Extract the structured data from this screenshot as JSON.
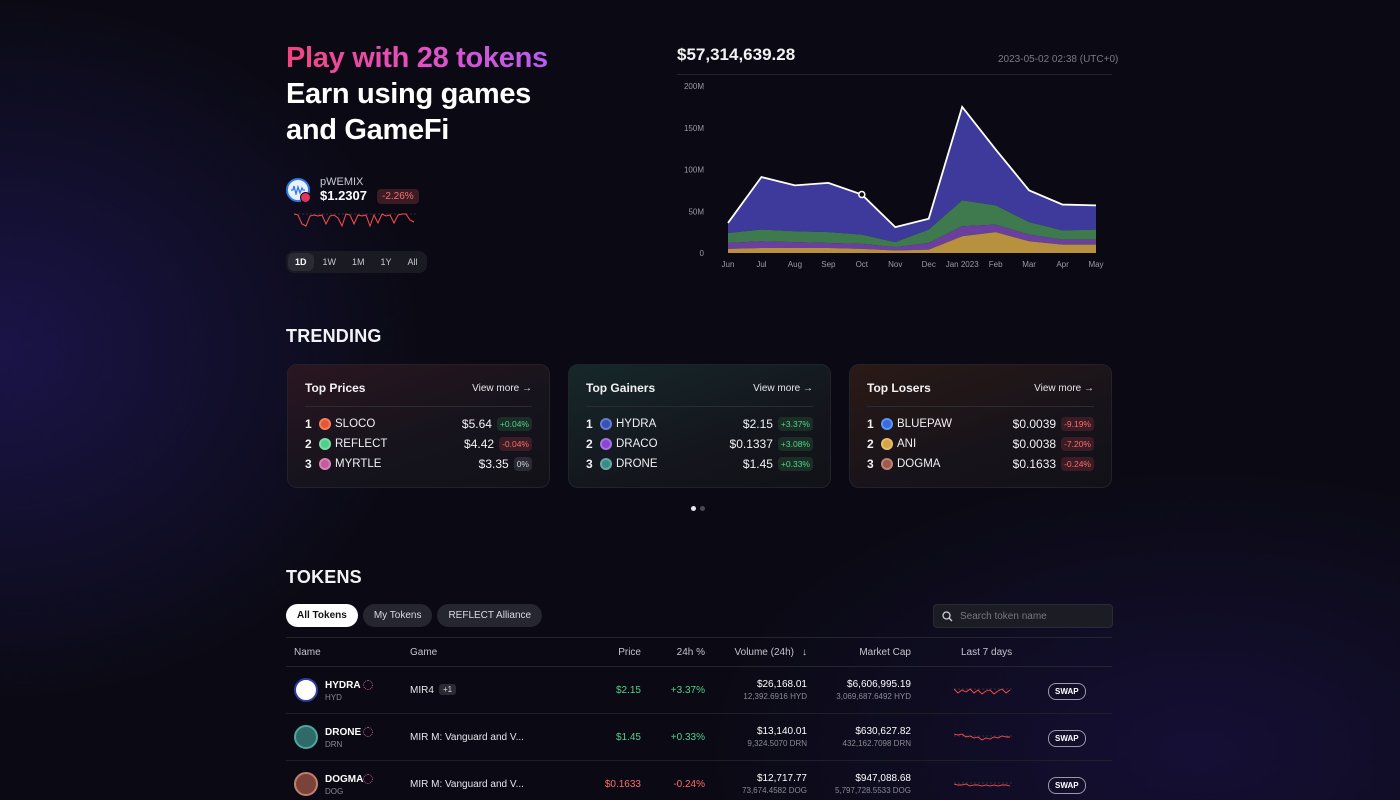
{
  "hero": {
    "title_highlight": "Play with 28 tokens",
    "title_line2": "Earn using games",
    "title_line3": "and GameFi",
    "token_name": "pWEMIX",
    "token_price": "$1.2307",
    "token_change": "-2.26%",
    "ranges": [
      "1D",
      "1W",
      "1M",
      "1Y",
      "All"
    ],
    "active_range": "1D"
  },
  "chart": {
    "total": "$57,314,639.28",
    "timestamp": "2023-05-02 02:38 (UTC+0)"
  },
  "chart_data": {
    "type": "area",
    "stacked": true,
    "x": [
      "Jun",
      "Jul",
      "Aug",
      "Sep",
      "Oct",
      "Nov",
      "Dec",
      "Jan 2023",
      "Feb",
      "Mar",
      "Apr",
      "May"
    ],
    "y_ticks": [
      "0",
      "50M",
      "100M",
      "150M",
      "200M"
    ],
    "ylim": [
      0,
      200
    ],
    "series": [
      {
        "color": "#b7913e",
        "values": [
          5,
          6,
          6,
          6,
          5,
          3,
          4,
          20,
          25,
          14,
          10,
          10
        ]
      },
      {
        "color": "#6a3f9e",
        "values": [
          7,
          8,
          7,
          6,
          6,
          4,
          8,
          12,
          9,
          8,
          6,
          6
        ]
      },
      {
        "color": "#3f7a4f",
        "values": [
          12,
          14,
          13,
          13,
          11,
          6,
          16,
          31,
          23,
          15,
          11,
          12
        ]
      },
      {
        "color": "#3d3a9c",
        "values": [
          12,
          63,
          55,
          59,
          48,
          18,
          13,
          112,
          67,
          38,
          31,
          29
        ]
      }
    ],
    "total_line_color": "#ffffff",
    "grid": false
  },
  "trending": {
    "title": "TRENDING",
    "view_more": "View more",
    "cards": [
      {
        "title": "Top Prices",
        "rows": [
          {
            "rank": "1",
            "name": "SLOCO",
            "price": "$5.64",
            "change": "+0.04%",
            "dir": "up",
            "color": "#e8552f"
          },
          {
            "rank": "2",
            "name": "REFLECT",
            "price": "$4.42",
            "change": "-0.04%",
            "dir": "down",
            "color": "#4fd08a"
          },
          {
            "rank": "3",
            "name": "MYRTLE",
            "price": "$3.35",
            "change": "0%",
            "dir": "flat",
            "color": "#c65aa0"
          }
        ]
      },
      {
        "title": "Top Gainers",
        "rows": [
          {
            "rank": "1",
            "name": "HYDRA",
            "price": "$2.15",
            "change": "+3.37%",
            "dir": "up",
            "color": "#3550b8"
          },
          {
            "rank": "2",
            "name": "DRACO",
            "price": "$0.1337",
            "change": "+3.08%",
            "dir": "up",
            "color": "#8a45d6"
          },
          {
            "rank": "3",
            "name": "DRONE",
            "price": "$1.45",
            "change": "+0.33%",
            "dir": "up",
            "color": "#3a8a86"
          }
        ]
      },
      {
        "title": "Top Losers",
        "rows": [
          {
            "rank": "1",
            "name": "BLUEPAW",
            "price": "$0.0039",
            "change": "-9.19%",
            "dir": "down",
            "color": "#2f6fe0"
          },
          {
            "rank": "2",
            "name": "ANI",
            "price": "$0.0038",
            "change": "-7.20%",
            "dir": "down",
            "color": "#d8a640"
          },
          {
            "rank": "3",
            "name": "DOGMA",
            "price": "$0.1633",
            "change": "-0.24%",
            "dir": "down",
            "color": "#a05a4a"
          }
        ]
      }
    ]
  },
  "tokens": {
    "title": "TOKENS",
    "filters": [
      "All Tokens",
      "My Tokens",
      "REFLECT Alliance"
    ],
    "active_filter": "All Tokens",
    "search_placeholder": "Search token name",
    "columns": {
      "name": "Name",
      "game": "Game",
      "price": "Price",
      "change": "24h %",
      "volume": "Volume (24h)",
      "cap": "Market Cap",
      "spark": "Last 7 days"
    },
    "swap_label": "SWAP",
    "rows": [
      {
        "name": "HYDRA",
        "symbol": "HYD",
        "game": "MIR4",
        "more": "+1",
        "price": "$2.15",
        "change": "+3.37%",
        "dir": "up",
        "volume": "$26,168.01",
        "volume_token": "12,392.6916 HYD",
        "cap": "$6,606,995.19",
        "cap_token": "3,069,687.6492 HYD",
        "logo_color": "#ffffff",
        "logo_ring": "#2c3c9c"
      },
      {
        "name": "DRONE",
        "symbol": "DRN",
        "game": "MIR M: Vanguard and V...",
        "more": "",
        "price": "$1.45",
        "change": "+0.33%",
        "dir": "up",
        "volume": "$13,140.01",
        "volume_token": "9,324.5070 DRN",
        "cap": "$630,627.82",
        "cap_token": "432,162.7098 DRN",
        "logo_color": "#2f6a68",
        "logo_ring": "#4fa6a0"
      },
      {
        "name": "DOGMA",
        "symbol": "DOG",
        "game": "MIR M: Vanguard and V...",
        "more": "",
        "price": "$0.1633",
        "change": "-0.24%",
        "dir": "down",
        "volume": "$12,717.77",
        "volume_token": "73,674.4582 DOG",
        "cap": "$947,088.68",
        "cap_token": "5,797,728.5533 DOG",
        "logo_color": "#7a4238",
        "logo_ring": "#c08070"
      }
    ]
  }
}
